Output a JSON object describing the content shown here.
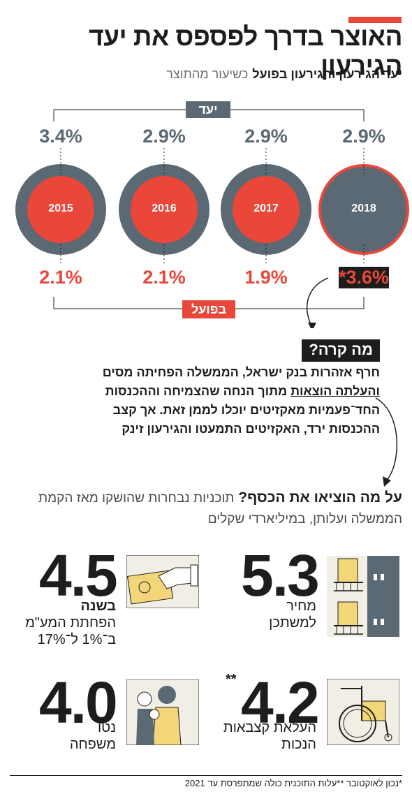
{
  "header": {
    "title": "האוצר בדרך לפספס את יעד הגירעון",
    "subtitle_bold": "יעד הגירעון והגירעון בפועל",
    "subtitle_light": "כשיעור מהתוצר"
  },
  "chart_data": {
    "type": "other",
    "target_label": "יעד",
    "actual_label": "בפועל",
    "years": [
      "2015",
      "2016",
      "2017",
      "2018"
    ],
    "target_pct": [
      "3.4%",
      "2.9%",
      "2.9%",
      "2.9%"
    ],
    "actual_pct": [
      "2.1%",
      "2.1%",
      "1.9%",
      "*3.6%"
    ],
    "target": [
      3.4,
      2.9,
      2.9,
      2.9
    ],
    "actual": [
      2.1,
      2.1,
      1.9,
      3.6
    ]
  },
  "colors": {
    "accent": "#e8473a",
    "slate": "#5a6973",
    "ink": "#1d1d1b"
  },
  "what_happened": {
    "title": "מה קרה?",
    "line1": "חרף אזהרות בנק ישראל, הממשלה הפחיתה מסים",
    "line2_underlined": "והעלתה הוצאות",
    "line2_rest": " מתוך הנחה שהצמיחה וההכנסות",
    "line3": "החד־פעמיות מאקזיטים יוכלו לממן זאת. אך קצב",
    "line4": "ההכנסות ירד, האקזיטים התמעטו והגירעון זינק"
  },
  "spending": {
    "question_bold": "על מה הוציאו את הכסף?",
    "question_light": "תוכניות נבחרות שהושקו מאז הקמת",
    "question_line2": "הממשלה ועלותן, במיליארדי שקלים",
    "items": [
      {
        "value": "5.3",
        "caption1": "מחיר",
        "caption2": "למשתכן",
        "icon": "building-icon"
      },
      {
        "value": "4.5",
        "caption_bold": "בשנה",
        "caption1": "הפחתת המע\"מ",
        "caption2": "ב־1% ל־17%",
        "icon": "payment-hand-icon"
      },
      {
        "value": "4.2",
        "marker": "**",
        "caption1": "העלאת קצבאות",
        "caption2": "הנכות",
        "icon": "wheelchair-icon"
      },
      {
        "value": "4.0",
        "caption1": "נטו",
        "caption2": "משפחה",
        "icon": "family-icon"
      }
    ]
  },
  "footer": "*נכון לאוקטובר **עלות התוכנית כולה שמתפרסת עד 2021"
}
